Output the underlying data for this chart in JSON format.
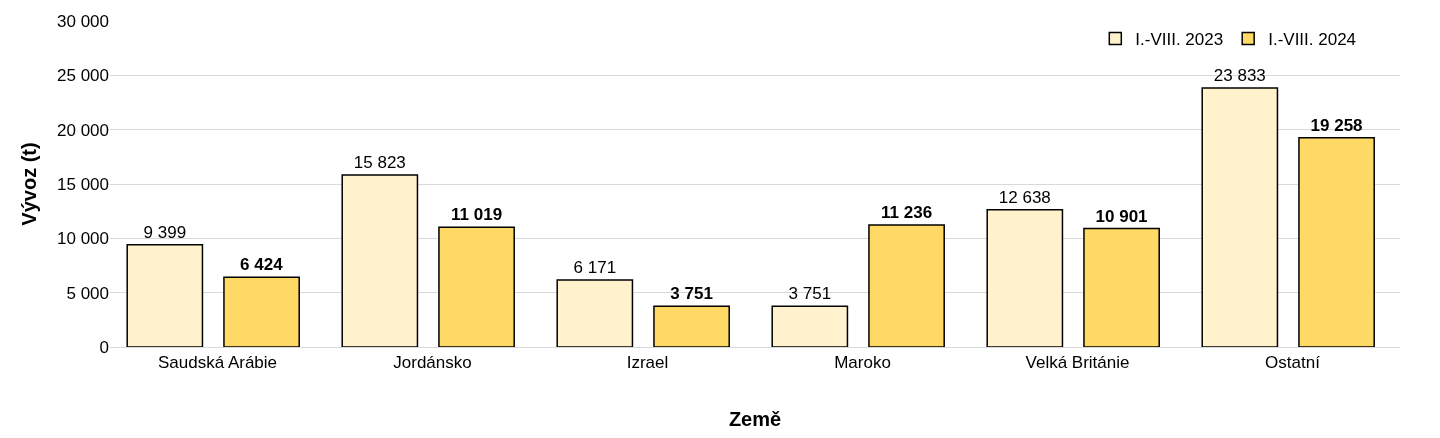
{
  "chart_data": {
    "type": "bar",
    "xlabel": "Země",
    "ylabel": "Vývoz (t)",
    "categories": [
      "Saudská Arábie",
      "Jordánsko",
      "Izrael",
      "Maroko",
      "Velká Británie",
      "Ostatní"
    ],
    "series": [
      {
        "name": "I.-VIII. 2023",
        "color": "#fff2cc",
        "values": [
          9399,
          15823,
          6171,
          3751,
          12638,
          23833
        ],
        "value_labels": [
          "9 399",
          "15 823",
          "6 171",
          "3 751",
          "12 638",
          "23 833"
        ]
      },
      {
        "name": "I.-VIII. 2024",
        "color": "#ffd966",
        "values": [
          6424,
          11019,
          3751,
          11236,
          10901,
          19258
        ],
        "value_labels": [
          "6 424",
          "11 019",
          "3 751",
          "11 236",
          "10 901",
          "19 258"
        ]
      }
    ],
    "ylim": [
      0,
      30000
    ],
    "yticks": [
      {
        "value": 0,
        "label": "0"
      },
      {
        "value": 5000,
        "label": "5 000"
      },
      {
        "value": 10000,
        "label": "10 000"
      },
      {
        "value": 15000,
        "label": "15 000"
      },
      {
        "value": 20000,
        "label": "20 000"
      },
      {
        "value": 25000,
        "label": "25 000"
      },
      {
        "value": 30000,
        "label": "30 000"
      }
    ],
    "grid": "y",
    "legend": "top right"
  }
}
